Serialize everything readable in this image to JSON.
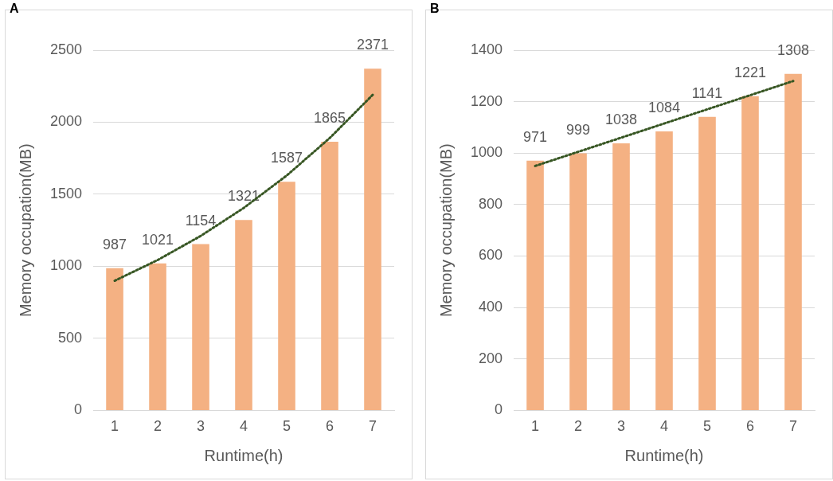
{
  "chart_data": [
    {
      "type": "bar",
      "title": "A",
      "xlabel": "Runtime(h)",
      "ylabel": "Memory occupation(MB)",
      "categories": [
        "1",
        "2",
        "3",
        "4",
        "5",
        "6",
        "7"
      ],
      "series": [
        {
          "type": "bar",
          "color": "#f4b183",
          "values": [
            987,
            1021,
            1154,
            1321,
            1587,
            1865,
            2371
          ],
          "value_labels": [
            "987",
            "1021",
            "1154",
            "1321",
            "1587",
            "1865",
            "2371"
          ]
        },
        {
          "type": "line",
          "color": "#375623",
          "values": [
            900,
            1044,
            1211,
            1405,
            1630,
            1890,
            2190
          ],
          "line_style": "dotted",
          "marker": "none"
        }
      ],
      "ylim": [
        0,
        2500
      ],
      "yticks": [
        0,
        500,
        1000,
        1500,
        2000,
        2500
      ],
      "grid": "y",
      "legend": false
    },
    {
      "type": "bar",
      "title": "B",
      "xlabel": "Runtime(h)",
      "ylabel": "Memory occupation(MB)",
      "categories": [
        "1",
        "2",
        "3",
        "4",
        "5",
        "6",
        "7"
      ],
      "series": [
        {
          "type": "bar",
          "color": "#f4b183",
          "values": [
            971,
            999,
            1038,
            1084,
            1141,
            1221,
            1308
          ],
          "value_labels": [
            "971",
            "999",
            "1038",
            "1084",
            "1141",
            "1221",
            "1308"
          ]
        },
        {
          "type": "line",
          "color": "#375623",
          "values": [
            950,
            1005,
            1060,
            1115,
            1170,
            1225,
            1280
          ],
          "line_style": "dotted",
          "marker": "none"
        }
      ],
      "ylim": [
        0,
        1400
      ],
      "yticks": [
        0,
        200,
        400,
        600,
        800,
        1000,
        1200,
        1400
      ],
      "grid": "y",
      "legend": false
    }
  ]
}
